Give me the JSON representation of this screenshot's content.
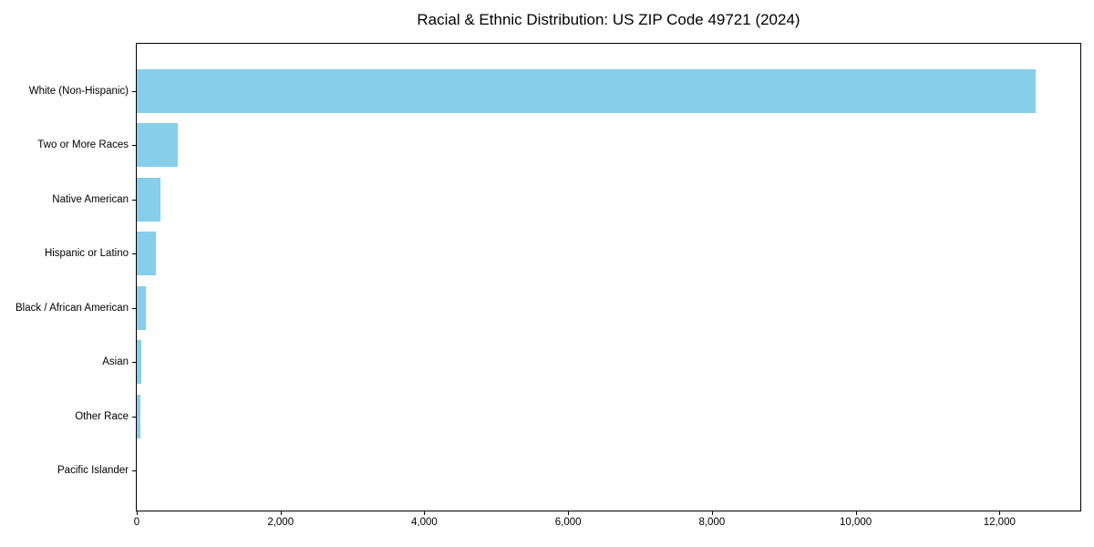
{
  "figure": {
    "background": "#ffffff",
    "spine_color": "#000000",
    "text_color": "#000000"
  },
  "chart_data": {
    "type": "bar",
    "orientation": "horizontal",
    "title": "Racial & Ethnic Distribution: US ZIP Code 49721 (2024)",
    "categories": [
      "White (Non-Hispanic)",
      "Two or More Races",
      "Native American",
      "Hispanic or Latino",
      "Black / African American",
      "Asian",
      "Other Race",
      "Pacific Islander"
    ],
    "values": [
      12500,
      570,
      330,
      260,
      120,
      60,
      45,
      0
    ],
    "xlabel": "",
    "ylabel": "",
    "xlim": [
      0,
      13125
    ],
    "xticks": [
      0,
      2000,
      4000,
      6000,
      8000,
      10000,
      12000
    ],
    "xtick_labels": [
      "0",
      "2,000",
      "4,000",
      "6,000",
      "8,000",
      "10,000",
      "12,000"
    ],
    "bar_color": "#87CEEB",
    "grid": false,
    "legend_position": "none"
  }
}
